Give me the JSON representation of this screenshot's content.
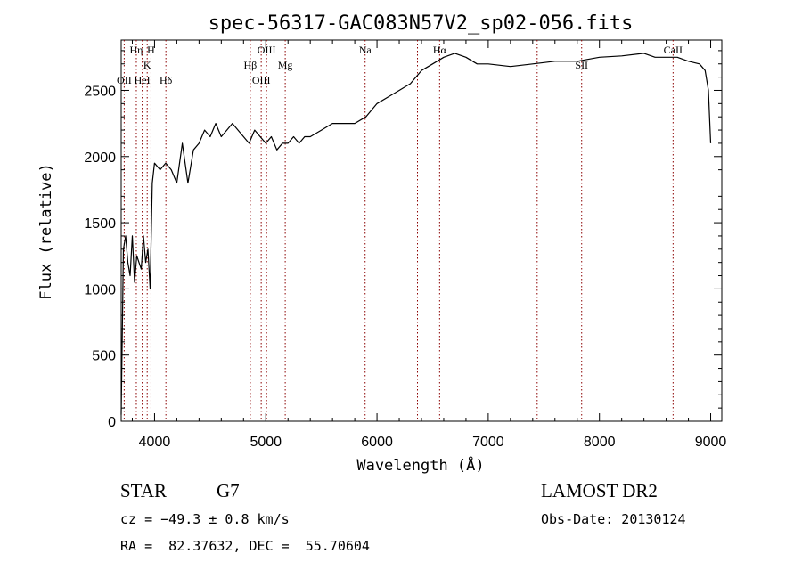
{
  "chart_data": {
    "type": "line",
    "title": "spec-56317-GAC083N57V2_sp02-056.fits",
    "xlabel": "Wavelength (Å)",
    "ylabel": "Flux (relative)",
    "xlim": [
      3700,
      9100
    ],
    "ylim": [
      0,
      2880
    ],
    "xticks": [
      4000,
      5000,
      6000,
      7000,
      8000,
      9000
    ],
    "xtick_labels": [
      "4000",
      "5000",
      "6000",
      "7000",
      "8000",
      "9000"
    ],
    "yticks": [
      0,
      500,
      1000,
      1500,
      2000,
      2500
    ],
    "ytick_labels": [
      "0",
      "500",
      "1000",
      "1500",
      "2000",
      "2500"
    ],
    "grid": false,
    "line_color": "#000000",
    "marker_color": "#8b0000",
    "series": [
      {
        "x": [
          3700,
          3720,
          3740,
          3760,
          3780,
          3800,
          3820,
          3840,
          3860,
          3880,
          3900,
          3920,
          3940,
          3960,
          3980,
          4000,
          4050,
          4100,
          4150,
          4200,
          4250,
          4300,
          4350,
          4400,
          4450,
          4500,
          4550,
          4600,
          4650,
          4700,
          4750,
          4800,
          4850,
          4900,
          4950,
          5000,
          5050,
          5100,
          5150,
          5200,
          5250,
          5300,
          5350,
          5400,
          5500,
          5600,
          5700,
          5800,
          5900,
          6000,
          6100,
          6200,
          6300,
          6400,
          6500,
          6600,
          6700,
          6800,
          6900,
          7000,
          7200,
          7400,
          7600,
          7800,
          8000,
          8200,
          8400,
          8500,
          8600,
          8700,
          8800,
          8900,
          8950,
          8980,
          9000
        ],
        "y": [
          50,
          1300,
          1400,
          1200,
          1100,
          1400,
          1050,
          1250,
          1200,
          1150,
          1400,
          1200,
          1300,
          1000,
          1800,
          1950,
          1900,
          1950,
          1900,
          1800,
          2100,
          1800,
          2050,
          2100,
          2200,
          2150,
          2250,
          2150,
          2200,
          2250,
          2200,
          2150,
          2100,
          2200,
          2150,
          2100,
          2150,
          2050,
          2100,
          2100,
          2150,
          2100,
          2150,
          2150,
          2200,
          2250,
          2250,
          2250,
          2300,
          2400,
          2450,
          2500,
          2550,
          2650,
          2700,
          2750,
          2780,
          2750,
          2700,
          2700,
          2680,
          2700,
          2720,
          2720,
          2750,
          2760,
          2780,
          2750,
          2750,
          2750,
          2720,
          2700,
          2650,
          2500,
          2100
        ]
      }
    ],
    "lines": [
      {
        "label": "OII",
        "x": 3727,
        "row": 3
      },
      {
        "label": "Hη",
        "x": 3836,
        "row": 1
      },
      {
        "label": "HeI",
        "x": 3889,
        "row": 3
      },
      {
        "label": "K",
        "x": 3934,
        "row": 2
      },
      {
        "label": "H",
        "x": 3968,
        "row": 1
      },
      {
        "label": "Hδ",
        "x": 4102,
        "row": 3
      },
      {
        "label": "Hβ",
        "x": 4861,
        "row": 2
      },
      {
        "label": "OIII",
        "x": 4959,
        "row": 3
      },
      {
        "label": "OIII",
        "x": 5007,
        "row": 1
      },
      {
        "label": "Mg",
        "x": 5175,
        "row": 2
      },
      {
        "label": "Na",
        "x": 5893,
        "row": 1
      },
      {
        "label": "",
        "x": 6364,
        "row": 1
      },
      {
        "label": "Hα",
        "x": 6563,
        "row": 1
      },
      {
        "label": "",
        "x": 7440,
        "row": 2
      },
      {
        "label": "SII",
        "x": 7840,
        "row": 2
      },
      {
        "label": "CaII",
        "x": 8662,
        "row": 1
      }
    ]
  },
  "info": {
    "class": "STAR",
    "subclass": "G7",
    "survey": "LAMOST DR2",
    "cz": "cz = −49.3 ± 0.8 km/s",
    "obs_date": "Obs-Date: 20130124",
    "coords": "RA =  82.37632, DEC =  55.70604"
  }
}
